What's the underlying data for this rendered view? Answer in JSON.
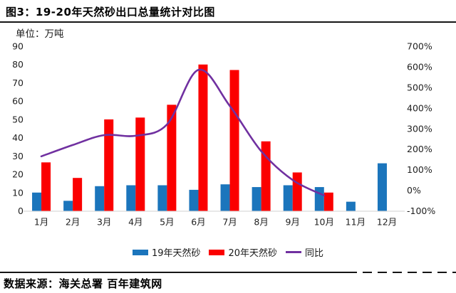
{
  "title": "图3：19-20年天然砂出口总量统计对比图",
  "unit_label": "单位：万吨",
  "source_label": "数据来源：海关总署 百年建筑网",
  "colors": {
    "bar_2019": "#1b75bc",
    "bar_2020": "#fb0000",
    "line_yoy": "#7030a0",
    "axis_line": "#d9d9d9",
    "text": "#1f1f1f",
    "rule": "#151515"
  },
  "chart_data": {
    "type": "bar",
    "subtype": "grouped-bars-with-line",
    "title": "图3：19-20年天然砂出口总量统计对比图",
    "unit": "万吨",
    "categories": [
      "1月",
      "2月",
      "3月",
      "4月",
      "5月",
      "6月",
      "7月",
      "8月",
      "9月",
      "10月",
      "11月",
      "12月"
    ],
    "series": [
      {
        "name": "19年天然砂",
        "type": "bar",
        "axis": "left",
        "values": [
          10,
          5.5,
          13.5,
          14,
          14,
          11.5,
          14.5,
          13,
          14,
          13,
          5,
          26
        ]
      },
      {
        "name": "20年天然砂",
        "type": "bar",
        "axis": "left",
        "values": [
          26.5,
          18,
          50,
          51,
          58,
          80,
          77,
          38,
          21,
          10,
          null,
          null
        ]
      },
      {
        "name": "同比",
        "type": "line",
        "axis": "right",
        "unit": "%",
        "values": [
          165,
          220,
          268,
          265,
          320,
          585,
          410,
          190,
          50,
          -25,
          null,
          null
        ]
      }
    ],
    "left_axis": {
      "min": 0,
      "max": 90,
      "step": 10,
      "ticks": [
        "90",
        "80",
        "70",
        "60",
        "50",
        "40",
        "30",
        "20",
        "10",
        "0"
      ]
    },
    "right_axis": {
      "min": -100,
      "max": 700,
      "step": 100,
      "ticks": [
        "700%",
        "600%",
        "500%",
        "400%",
        "300%",
        "200%",
        "100%",
        "0%",
        "-100%"
      ]
    },
    "grid": false,
    "legend_position": "bottom"
  }
}
